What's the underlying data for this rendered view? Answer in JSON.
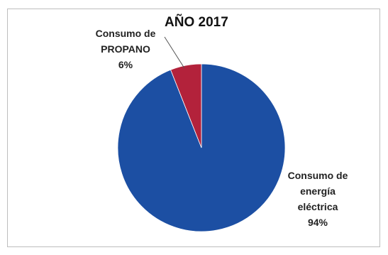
{
  "chart_data": {
    "type": "pie",
    "title": "AÑO 2017",
    "slices": [
      {
        "label_lines": [
          "Consumo de",
          "energía",
          "eléctrica"
        ],
        "value": 94,
        "value_label": "94%",
        "color": "#1c4fa3"
      },
      {
        "label_lines": [
          "Consumo de",
          "PROPANO"
        ],
        "value": 6,
        "value_label": "6%",
        "color": "#b3223b"
      }
    ]
  }
}
